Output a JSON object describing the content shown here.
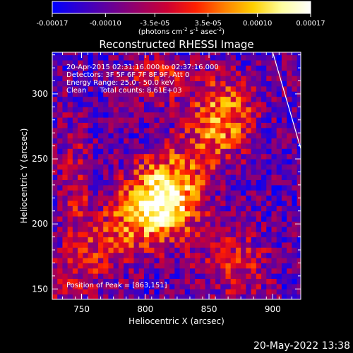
{
  "chart_data": {
    "type": "heatmap",
    "title": "Reconstructed RHESSI Image",
    "xlabel": "Heliocentric X (arcsec)",
    "ylabel": "Heliocentric Y (arcsec)",
    "xlim": [
      727,
      922
    ],
    "ylim": [
      142,
      332
    ],
    "x_ticks": [
      {
        "value": 750,
        "label": "750"
      },
      {
        "value": 800,
        "label": "800"
      },
      {
        "value": 850,
        "label": "850"
      },
      {
        "value": 900,
        "label": "900"
      }
    ],
    "y_ticks": [
      {
        "value": 150,
        "label": "150"
      },
      {
        "value": 200,
        "label": "200"
      },
      {
        "value": 250,
        "label": "250"
      },
      {
        "value": 300,
        "label": "300"
      }
    ],
    "annotations": [
      "20-Apr-2015 02:31:16.000 to 02:37:16.000",
      "Detectors: 3F 5F 6F 7F 8F 9F, Att 0",
      "Energy Range: 25.0 - 50.0 keV",
      "Clean      Total counts: 8.61E+03"
    ],
    "peak_label": "Position of Peak = [863,151]",
    "peak": [
      863,
      151
    ],
    "limb_line": [
      [
        900,
        332
      ],
      [
        922,
        258
      ]
    ],
    "colorbar": {
      "range": [
        -0.00017,
        0.00017
      ],
      "tick_values": [
        -0.00017,
        -0.0001,
        -3.5e-05,
        3.5e-05,
        0.0001,
        0.00017
      ],
      "tick_labels": [
        "-0.00017",
        "-0.00010",
        "-3.5e-05",
        "3.5e-05",
        "0.00010",
        "0.00017"
      ],
      "label_text": "(photons cm",
      "label_exp1": "-2",
      "label_mid": " s",
      "label_exp2": "-1",
      "label_tail": " asec",
      "label_exp3": "-2",
      "label_close": ")",
      "colors": [
        "#0000ff",
        "#3300cc",
        "#660099",
        "#990066",
        "#cc0033",
        "#ff2000",
        "#ff8000",
        "#ffd000",
        "#ffffa0",
        "#ffffff"
      ]
    },
    "pixel_size_arcsec": 4,
    "grid": false
  },
  "footer": {
    "timestamp": "20-May-2022 13:38"
  }
}
